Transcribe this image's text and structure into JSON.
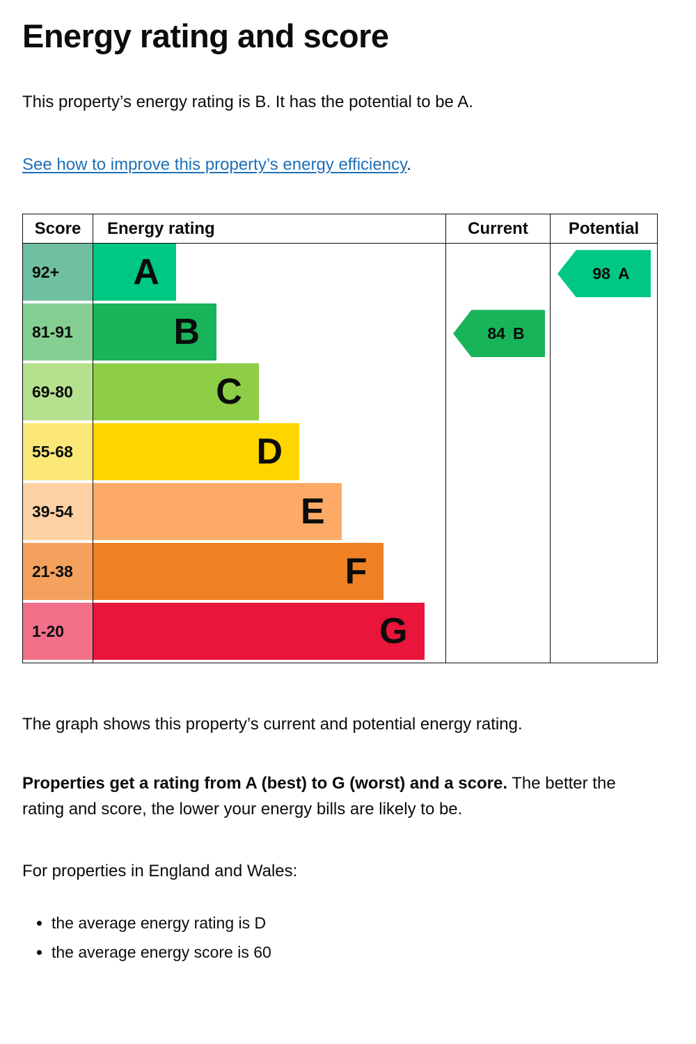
{
  "page": {
    "title": "Energy rating and score",
    "intro": "This property’s energy rating is B. It has the potential to be A.",
    "improve_link_text": "See how to improve this property’s energy efficiency",
    "improve_link_suffix": ".",
    "graph_caption": "The graph shows this property’s current and potential energy rating.",
    "rating_explain_bold": "Properties get a rating from A (best) to G (worst) and a score.",
    "rating_explain_rest": "The better the rating and score, the lower your energy bills are likely to be.",
    "region_heading": "For properties in England and Wales:",
    "facts": [
      "the average energy rating is D",
      "the average energy score is 60"
    ],
    "link_color": "#1d70b8",
    "text_color": "#0b0c0c"
  },
  "chart_data": {
    "type": "bar",
    "title": "Energy efficiency rating chart (EPC)",
    "columns": [
      "Score",
      "Energy rating",
      "Current",
      "Potential"
    ],
    "bands": [
      {
        "score": "92+",
        "letter": "A",
        "color": "#00c781",
        "score_bg": "#6fc0a0",
        "bar_width_pct": 23.5
      },
      {
        "score": "81-91",
        "letter": "B",
        "color": "#19b459",
        "score_bg": "#85cf92",
        "bar_width_pct": 35
      },
      {
        "score": "69-80",
        "letter": "C",
        "color": "#8dce46",
        "score_bg": "#b5e08d",
        "bar_width_pct": 47
      },
      {
        "score": "55-68",
        "letter": "D",
        "color": "#ffd500",
        "score_bg": "#fbe878",
        "bar_width_pct": 58.5
      },
      {
        "score": "39-54",
        "letter": "E",
        "color": "#fcaa65",
        "score_bg": "#fdd1a3",
        "bar_width_pct": 70.5
      },
      {
        "score": "21-38",
        "letter": "F",
        "color": "#ef8023",
        "score_bg": "#f4a15d",
        "bar_width_pct": 82.5
      },
      {
        "score": "1-20",
        "letter": "G",
        "color": "#e9153b",
        "score_bg": "#f2708a",
        "bar_width_pct": 94
      }
    ],
    "current": {
      "label": "Current",
      "score": 84,
      "letter": "B",
      "band_index": 1,
      "color": "#19b459"
    },
    "potential": {
      "label": "Potential",
      "score": 98,
      "letter": "A",
      "band_index": 0,
      "color": "#00c781"
    }
  }
}
